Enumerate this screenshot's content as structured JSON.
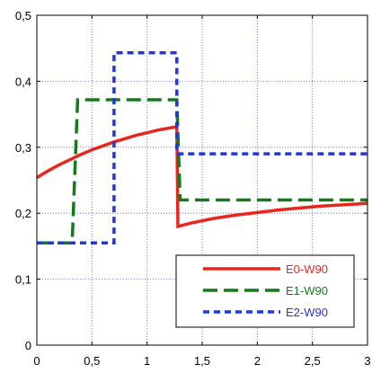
{
  "chart_data": {
    "type": "line",
    "title": "",
    "xlabel": "",
    "ylabel": "",
    "xlim": [
      0,
      3
    ],
    "ylim": [
      0,
      0.5
    ],
    "grid": true,
    "legend_position": "bottom-right",
    "x_ticks": [
      0,
      0.5,
      1,
      1.5,
      2,
      2.5,
      3
    ],
    "x_tick_labels": [
      "0",
      "0,5",
      "1",
      "1,5",
      "2",
      "2,5",
      "3"
    ],
    "y_ticks": [
      0,
      0.1,
      0.2,
      0.3,
      0.4,
      0.5
    ],
    "y_tick_labels": [
      "0",
      "0,1",
      "0,2",
      "0,3",
      "0,4",
      "0,5"
    ],
    "series": [
      {
        "name": "E0-W90",
        "color": "#e8261c",
        "style": "solid",
        "x": [
          0,
          0.1,
          0.2,
          0.3,
          0.4,
          0.5,
          0.6,
          0.7,
          0.8,
          0.9,
          1.0,
          1.1,
          1.2,
          1.27,
          1.28,
          1.4,
          1.6,
          1.8,
          2.0,
          2.2,
          2.4,
          2.6,
          2.8,
          3.0
        ],
        "y": [
          0.254,
          0.264,
          0.273,
          0.281,
          0.289,
          0.296,
          0.302,
          0.308,
          0.313,
          0.318,
          0.322,
          0.326,
          0.329,
          0.331,
          0.18,
          0.185,
          0.192,
          0.197,
          0.201,
          0.205,
          0.208,
          0.211,
          0.213,
          0.215
        ]
      },
      {
        "name": "E1-W90",
        "color": "#157a1c",
        "style": "long-dash",
        "x": [
          0,
          0.32,
          0.37,
          1.27,
          1.3,
          3.0
        ],
        "y": [
          0.155,
          0.155,
          0.372,
          0.372,
          0.22,
          0.22
        ]
      },
      {
        "name": "E2-W90",
        "color": "#1f36e0",
        "style": "short-dash",
        "x": [
          0,
          0.7,
          0.7,
          1.27,
          1.27,
          3.0
        ],
        "y": [
          0.155,
          0.155,
          0.443,
          0.443,
          0.29,
          0.29
        ]
      }
    ]
  }
}
